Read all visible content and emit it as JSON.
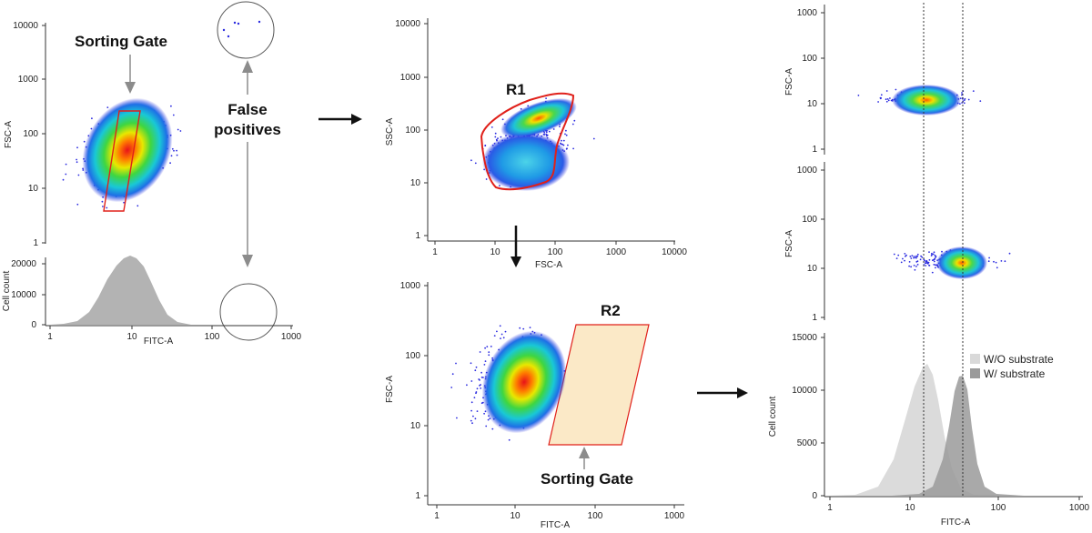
{
  "colors": {
    "gate": "#e0201a",
    "gate_fill": "#fbe9c7",
    "histogram": "#b3b3b3",
    "hist_without": "#d9d9d9",
    "hist_with": "#9a9a9a",
    "dots": "#2a2ae0",
    "arrow": "#111111",
    "grey_arrow": "#8c8c8c"
  },
  "labels": {
    "sorting_gate_top": "Sorting Gate",
    "false_positives": [
      "False",
      "positives"
    ],
    "r1": "R1",
    "r2": "R2",
    "sorting_gate_bottom": "Sorting Gate"
  },
  "panels": {
    "left_dot": {
      "ylabel": "FSC-A",
      "yticks": [
        "10000",
        "1000",
        "100",
        "10",
        "1"
      ]
    },
    "left_hist": {
      "ylabel": "Cell count",
      "yticks": [
        "20000",
        "10000",
        "0"
      ],
      "xlabel": "FITC-A",
      "xticks": [
        "1",
        "10",
        "100",
        "1000"
      ]
    },
    "mid_top": {
      "ylabel": "SSC-A",
      "yticks": [
        "10000",
        "1000",
        "100",
        "10",
        "1"
      ],
      "xlabel": "FSC-A",
      "xticks": [
        "1",
        "10",
        "100",
        "1000",
        "10000"
      ]
    },
    "mid_bottom": {
      "ylabel": "FSC-A",
      "yticks": [
        "1000",
        "100",
        "10",
        "1"
      ],
      "xlabel": "FITC-A",
      "xticks": [
        "1",
        "10",
        "100",
        "1000"
      ]
    },
    "right_top": {
      "ylabel": "FSC-A",
      "yticks": [
        "1000",
        "100",
        "10",
        "1"
      ]
    },
    "right_mid": {
      "ylabel": "FSC-A",
      "yticks": [
        "1000",
        "100",
        "10",
        "1"
      ]
    },
    "right_hist": {
      "ylabel": "Cell count",
      "yticks": [
        "15000",
        "10000",
        "5000",
        "0"
      ],
      "xlabel": "FITC-A",
      "xticks": [
        "1",
        "10",
        "100",
        "1000"
      ],
      "legend": [
        "W/O substrate",
        "W/ substrate"
      ]
    }
  }
}
